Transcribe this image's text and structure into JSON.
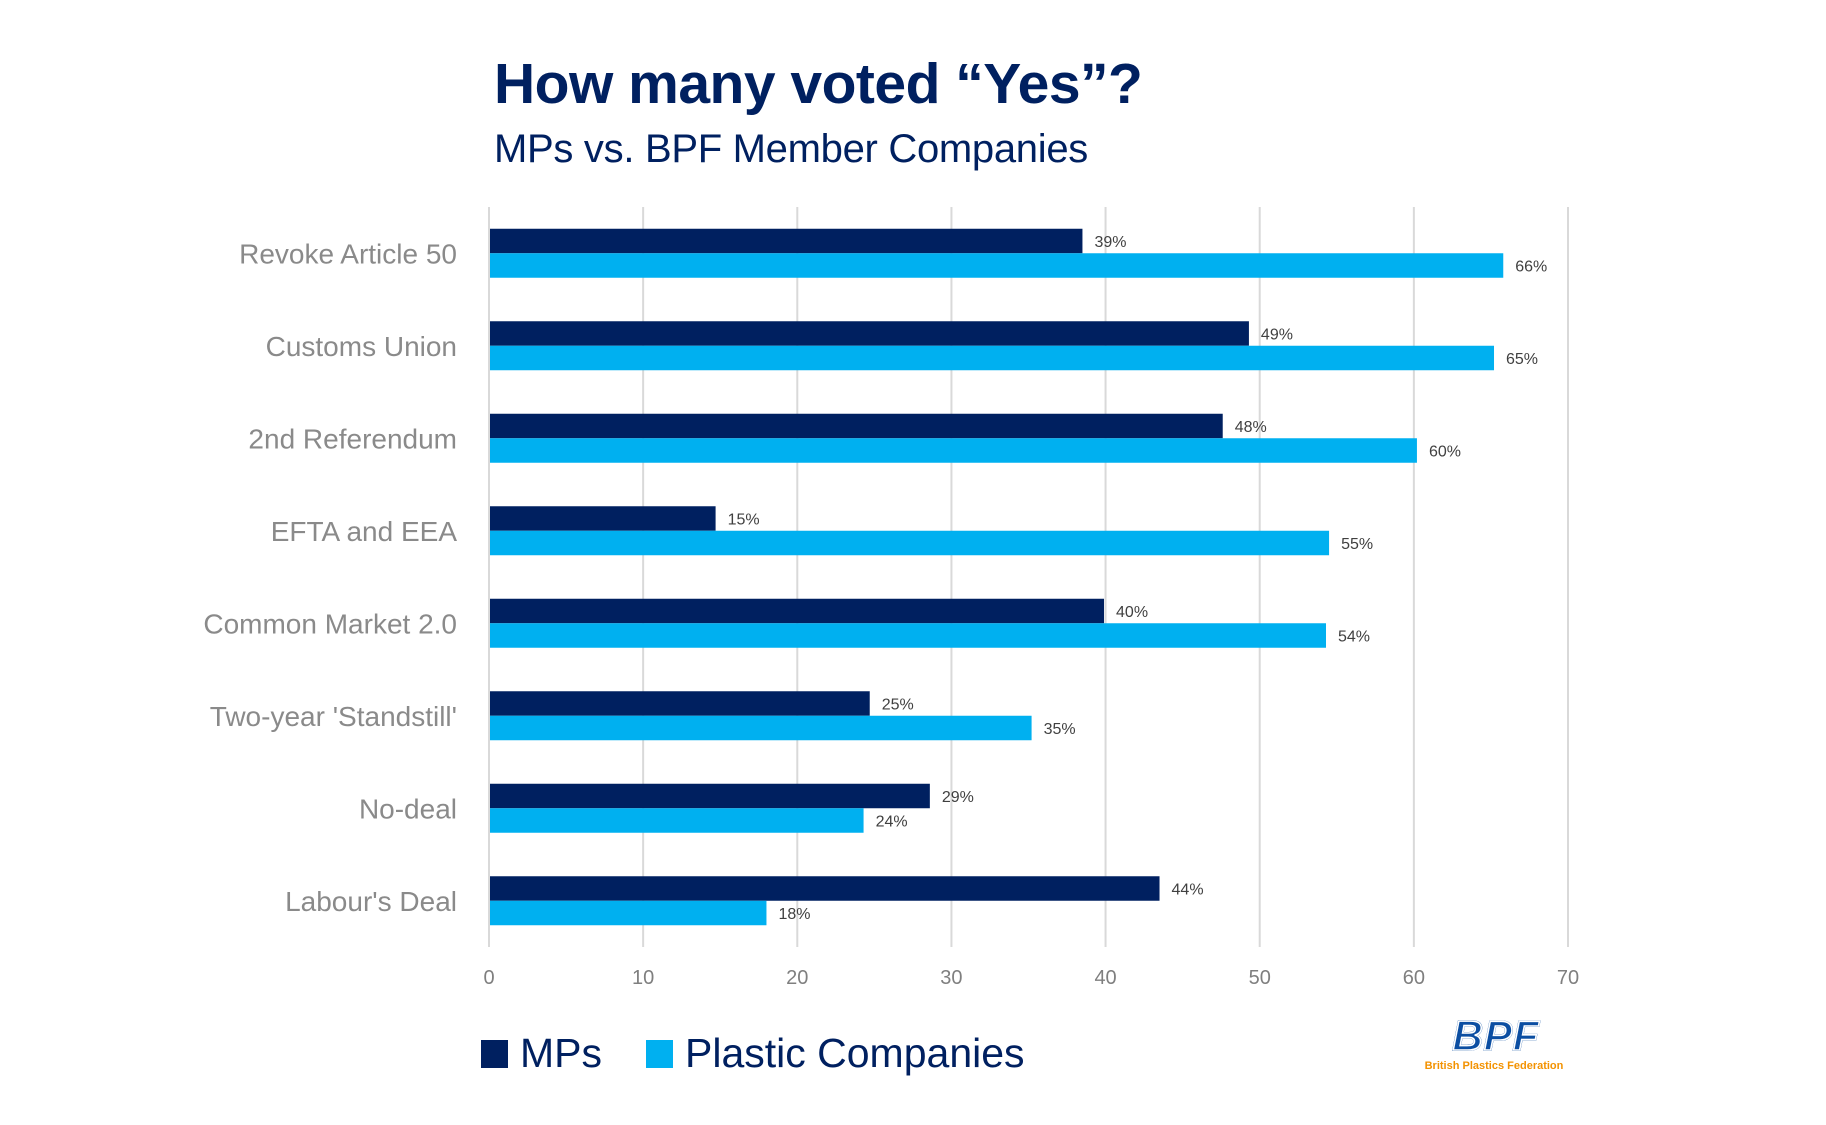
{
  "header": {
    "title": "How many voted “Yes”?",
    "subtitle": "MPs vs. BPF Member Companies"
  },
  "colors": {
    "mps": "#002060",
    "plastic": "#00b0f0",
    "title": "#002060",
    "gridline": "#d9d9d9",
    "logo_blue": "#0b4ea2",
    "logo_orange": "#f39200"
  },
  "legend": {
    "items": [
      {
        "label": "MPs",
        "color": "#002060"
      },
      {
        "label": "Plastic Companies",
        "color": "#00b0f0"
      }
    ],
    "position": "bottom-left"
  },
  "logo": {
    "letters": "BPF",
    "text": "British Plastics Federation"
  },
  "chart_data": {
    "type": "bar",
    "orientation": "horizontal",
    "title": "How many voted “Yes”?",
    "subtitle": "MPs vs. BPF Member Companies",
    "xlabel": "",
    "ylabel": "",
    "categories": [
      "Revoke Article 50",
      "Customs Union",
      "2nd Referendum",
      "EFTA and EEA",
      "Common Market 2.0",
      "Two-year 'Standstill'",
      "No-deal",
      "Labour's Deal"
    ],
    "series": [
      {
        "name": "MPs",
        "color": "#002060",
        "values": [
          38.5,
          49.3,
          47.6,
          14.7,
          39.9,
          24.7,
          28.6,
          43.5
        ],
        "labels": [
          "39%",
          "49%",
          "48%",
          "15%",
          "40%",
          "25%",
          "29%",
          "44%"
        ]
      },
      {
        "name": "Plastic Companies",
        "color": "#00b0f0",
        "values": [
          65.8,
          65.2,
          60.2,
          54.5,
          54.3,
          35.2,
          24.3,
          18.0
        ],
        "labels": [
          "66%",
          "65%",
          "60%",
          "55%",
          "54%",
          "35%",
          "24%",
          "18%"
        ]
      }
    ],
    "xlim": [
      0,
      70
    ],
    "xticks": [
      0,
      10,
      20,
      30,
      40,
      50,
      60,
      70
    ],
    "xtick_labels": [
      "0",
      "10",
      "20",
      "30",
      "40",
      "50",
      "60",
      "70"
    ],
    "grid": "vertical",
    "legend": "bottom-left"
  }
}
